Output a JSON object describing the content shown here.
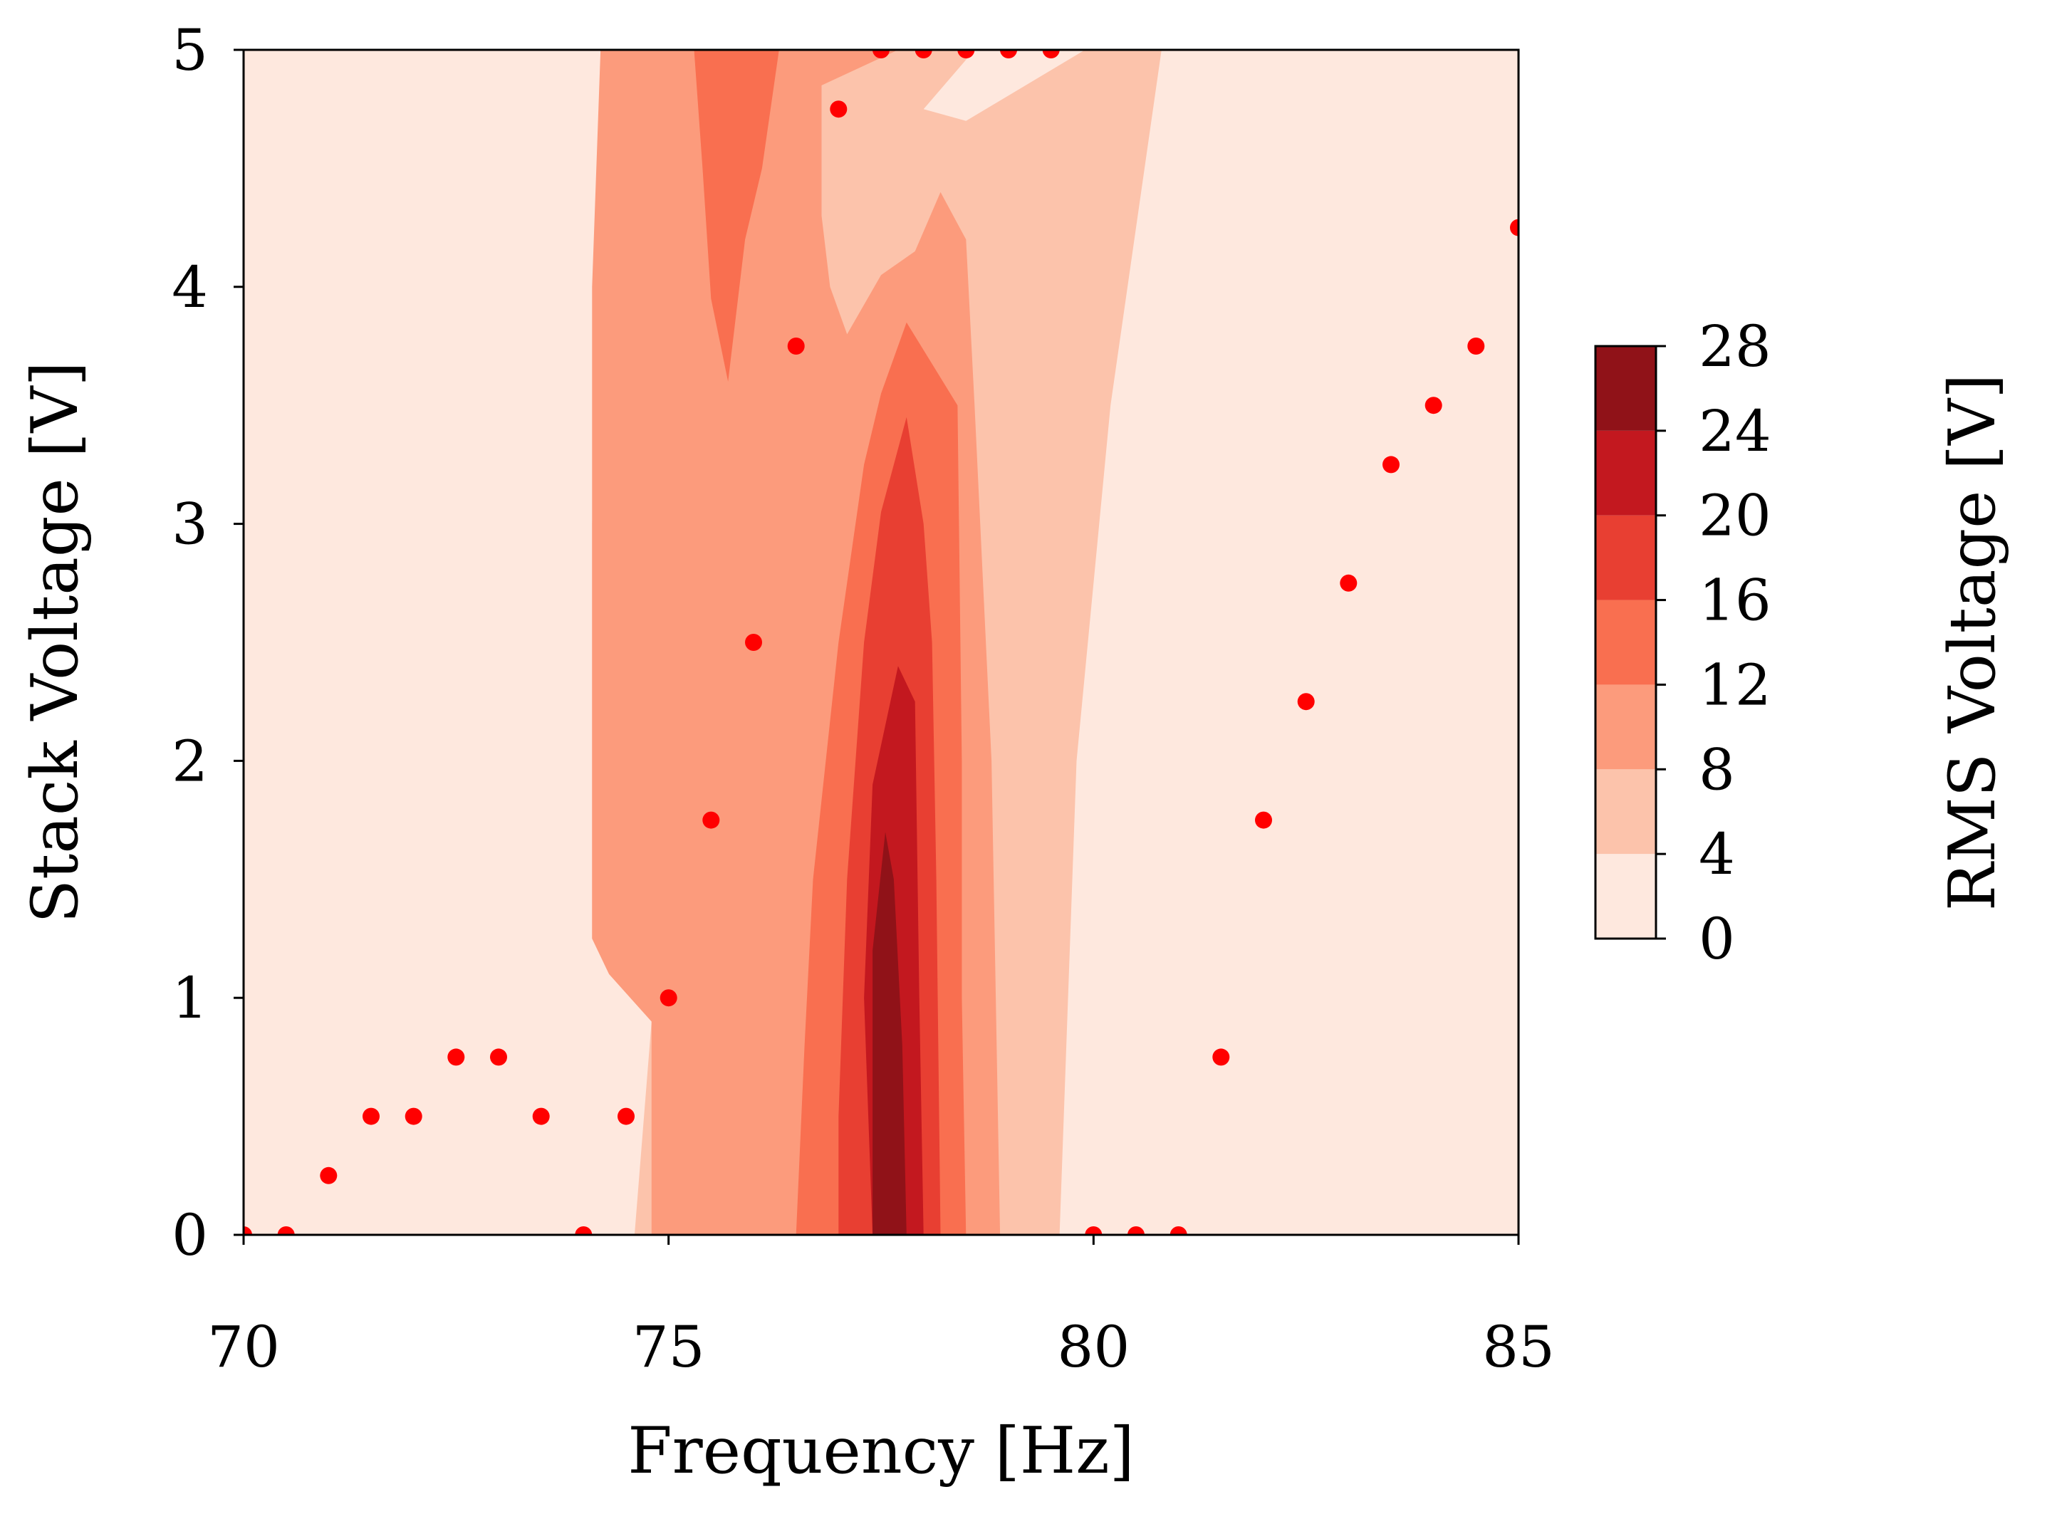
{
  "chart_data": {
    "type": "heatmap",
    "subtype": "filled-contour with scatter overlay",
    "xlabel": "Frequency [Hz]",
    "ylabel": "Stack Voltage [V]",
    "xlim": [
      70,
      85
    ],
    "ylim": [
      0,
      5
    ],
    "x_ticks": [
      70,
      75,
      80,
      85
    ],
    "y_ticks": [
      0,
      1,
      2,
      3,
      4,
      5
    ],
    "grid": false,
    "colormap": "Reds",
    "colorbar": {
      "label": "RMS Voltage [V]",
      "levels": [
        0,
        4,
        8,
        12,
        16,
        20,
        24,
        28
      ],
      "colors": [
        "#fee8de",
        "#fcc3ab",
        "#fc9b7c",
        "#f96f50",
        "#e83f32",
        "#c3181f",
        "#901218"
      ]
    },
    "contour_bands": [
      {
        "level_min": 4,
        "polygon": [
          [
            74.2,
            5
          ],
          [
            78.6,
            5
          ],
          [
            80.8,
            5
          ],
          [
            80.2,
            3.5
          ],
          [
            79.8,
            2
          ],
          [
            79.6,
            0
          ],
          [
            74.6,
            0
          ],
          [
            74.8,
            0.9
          ],
          [
            74.3,
            1.1
          ],
          [
            74.1,
            1.25
          ],
          [
            74.1,
            3
          ],
          [
            74.2,
            4
          ]
        ]
      },
      {
        "level_min": 8,
        "polygon": [
          [
            74.2,
            5
          ],
          [
            77.7,
            5
          ],
          [
            76.8,
            4.85
          ],
          [
            76.8,
            4.3
          ],
          [
            76.9,
            4.0
          ],
          [
            77.1,
            3.8
          ],
          [
            77.5,
            4.05
          ],
          [
            77.9,
            4.15
          ],
          [
            78.2,
            4.4
          ],
          [
            78.5,
            4.2
          ],
          [
            78.6,
            3.5
          ],
          [
            78.8,
            2
          ],
          [
            78.9,
            0
          ],
          [
            74.8,
            0
          ],
          [
            74.8,
            0.9
          ],
          [
            74.3,
            1.1
          ],
          [
            74.1,
            1.25
          ],
          [
            74.1,
            4
          ]
        ]
      },
      {
        "level_min": 12,
        "polygon": [
          [
            75.3,
            5
          ],
          [
            76.3,
            5
          ],
          [
            76.1,
            4.5
          ],
          [
            75.9,
            4.2
          ],
          [
            75.7,
            3.6
          ],
          [
            75.5,
            3.95
          ],
          [
            75.4,
            4.5
          ]
        ]
      },
      {
        "level_min": 12,
        "polygon": [
          [
            76.5,
            0
          ],
          [
            78.5,
            0
          ],
          [
            78.45,
            1
          ],
          [
            78.45,
            2
          ],
          [
            78.4,
            3.5
          ],
          [
            77.8,
            3.85
          ],
          [
            77.5,
            3.55
          ],
          [
            77.3,
            3.25
          ],
          [
            77.0,
            2.5
          ],
          [
            76.7,
            1.5
          ],
          [
            76.6,
            0.8
          ]
        ]
      },
      {
        "level_min": 16,
        "polygon": [
          [
            77.0,
            0
          ],
          [
            78.2,
            0
          ],
          [
            78.15,
            1.5
          ],
          [
            78.1,
            2.5
          ],
          [
            78.0,
            3.0
          ],
          [
            77.8,
            3.45
          ],
          [
            77.5,
            3.05
          ],
          [
            77.3,
            2.5
          ],
          [
            77.1,
            1.5
          ],
          [
            77.0,
            0.5
          ]
        ]
      },
      {
        "level_min": 20,
        "polygon": [
          [
            77.4,
            0
          ],
          [
            78.0,
            0
          ],
          [
            77.95,
            1.0
          ],
          [
            77.9,
            2.25
          ],
          [
            77.7,
            2.4
          ],
          [
            77.4,
            1.9
          ],
          [
            77.3,
            1.0
          ]
        ]
      },
      {
        "level_min": 24,
        "polygon": [
          [
            77.4,
            0
          ],
          [
            77.8,
            0
          ],
          [
            77.75,
            0.8
          ],
          [
            77.65,
            1.5
          ],
          [
            77.55,
            1.7
          ],
          [
            77.4,
            1.2
          ]
        ]
      }
    ],
    "band_near_zero": [
      {
        "level_min": 0,
        "polygon": [
          [
            78.6,
            5
          ],
          [
            79.9,
            5
          ],
          [
            78.5,
            4.7
          ],
          [
            78.0,
            4.75
          ]
        ]
      }
    ],
    "scatter": {
      "color": "#ff0000",
      "points": [
        [
          70.0,
          0.0
        ],
        [
          70.5,
          0.0
        ],
        [
          71.0,
          0.25
        ],
        [
          71.5,
          0.5
        ],
        [
          72.0,
          0.5
        ],
        [
          72.5,
          0.75
        ],
        [
          73.0,
          0.75
        ],
        [
          73.5,
          0.5
        ],
        [
          74.0,
          0.0
        ],
        [
          74.5,
          0.5
        ],
        [
          75.0,
          1.0
        ],
        [
          75.5,
          1.75
        ],
        [
          76.0,
          2.5
        ],
        [
          76.5,
          3.75
        ],
        [
          77.0,
          4.75
        ],
        [
          77.5,
          5.0
        ],
        [
          78.0,
          5.0
        ],
        [
          78.5,
          5.0
        ],
        [
          79.0,
          5.0
        ],
        [
          79.5,
          5.0
        ],
        [
          80.0,
          0.0
        ],
        [
          80.5,
          0.0
        ],
        [
          81.0,
          0.0
        ],
        [
          81.5,
          0.75
        ],
        [
          82.0,
          1.75
        ],
        [
          82.5,
          2.25
        ],
        [
          83.0,
          2.75
        ],
        [
          83.5,
          3.25
        ],
        [
          84.0,
          3.5
        ],
        [
          84.5,
          3.75
        ],
        [
          85.0,
          4.25
        ]
      ]
    }
  }
}
